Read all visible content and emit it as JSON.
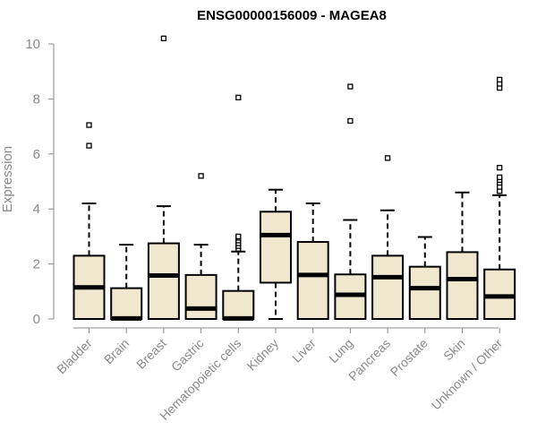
{
  "chart_data": {
    "type": "boxplot",
    "title": "ENSG00000156009 - MAGEA8",
    "xlabel": "",
    "ylabel": "Expression",
    "ylim": [
      0,
      10
    ],
    "yticks": [
      0,
      2,
      4,
      6,
      8,
      10
    ],
    "box_fill": "#efe8cf",
    "box_stroke": "#000000",
    "axis_color": "#8a8a8a",
    "grid": false,
    "categories": [
      "Bladder",
      "Brain",
      "Breast",
      "Gastric",
      "Hematopoietic cells",
      "Kidney",
      "Liver",
      "Lung",
      "Pancreas",
      "Prostate",
      "Skin",
      "Unknown / Other"
    ],
    "boxes": [
      {
        "category": "Bladder",
        "whisker_low": 0,
        "q1": 0,
        "median": 1.15,
        "q3": 2.3,
        "whisker_high": 4.2,
        "outliers": [
          6.3,
          7.05
        ]
      },
      {
        "category": "Brain",
        "whisker_low": 0,
        "q1": 0,
        "median": 0.02,
        "q3": 1.12,
        "whisker_high": 2.7,
        "outliers": []
      },
      {
        "category": "Breast",
        "whisker_low": 0,
        "q1": 0,
        "median": 1.58,
        "q3": 2.75,
        "whisker_high": 4.1,
        "outliers": [
          10.2
        ]
      },
      {
        "category": "Gastric",
        "whisker_low": 0,
        "q1": 0,
        "median": 0.38,
        "q3": 1.6,
        "whisker_high": 2.7,
        "outliers": [
          5.2
        ]
      },
      {
        "category": "Hematopoietic cells",
        "whisker_low": 0,
        "q1": 0,
        "median": 0.02,
        "q3": 1.02,
        "whisker_high": 2.45,
        "outliers": [
          2.55,
          2.65,
          2.75,
          2.85,
          2.95,
          3.0,
          8.05
        ]
      },
      {
        "category": "Kidney",
        "whisker_low": 0,
        "q1": 1.32,
        "median": 3.05,
        "q3": 3.9,
        "whisker_high": 4.7,
        "outliers": []
      },
      {
        "category": "Liver",
        "whisker_low": 0,
        "q1": 0,
        "median": 1.6,
        "q3": 2.8,
        "whisker_high": 4.2,
        "outliers": []
      },
      {
        "category": "Lung",
        "whisker_low": 0,
        "q1": 0,
        "median": 0.88,
        "q3": 1.62,
        "whisker_high": 3.6,
        "outliers": [
          7.2,
          8.45
        ]
      },
      {
        "category": "Pancreas",
        "whisker_low": 0,
        "q1": 0,
        "median": 1.52,
        "q3": 2.3,
        "whisker_high": 3.95,
        "outliers": [
          5.85
        ]
      },
      {
        "category": "Prostate",
        "whisker_low": 0,
        "q1": 0,
        "median": 1.12,
        "q3": 1.9,
        "whisker_high": 2.98,
        "outliers": []
      },
      {
        "category": "Skin",
        "whisker_low": 0,
        "q1": 0,
        "median": 1.45,
        "q3": 2.43,
        "whisker_high": 4.6,
        "outliers": []
      },
      {
        "category": "Unknown / Other",
        "whisker_low": 0,
        "q1": 0,
        "median": 0.82,
        "q3": 1.8,
        "whisker_high": 4.5,
        "outliers": [
          4.65,
          4.8,
          4.95,
          5.05,
          5.15,
          5.5,
          8.4,
          8.55,
          8.7
        ]
      }
    ]
  }
}
